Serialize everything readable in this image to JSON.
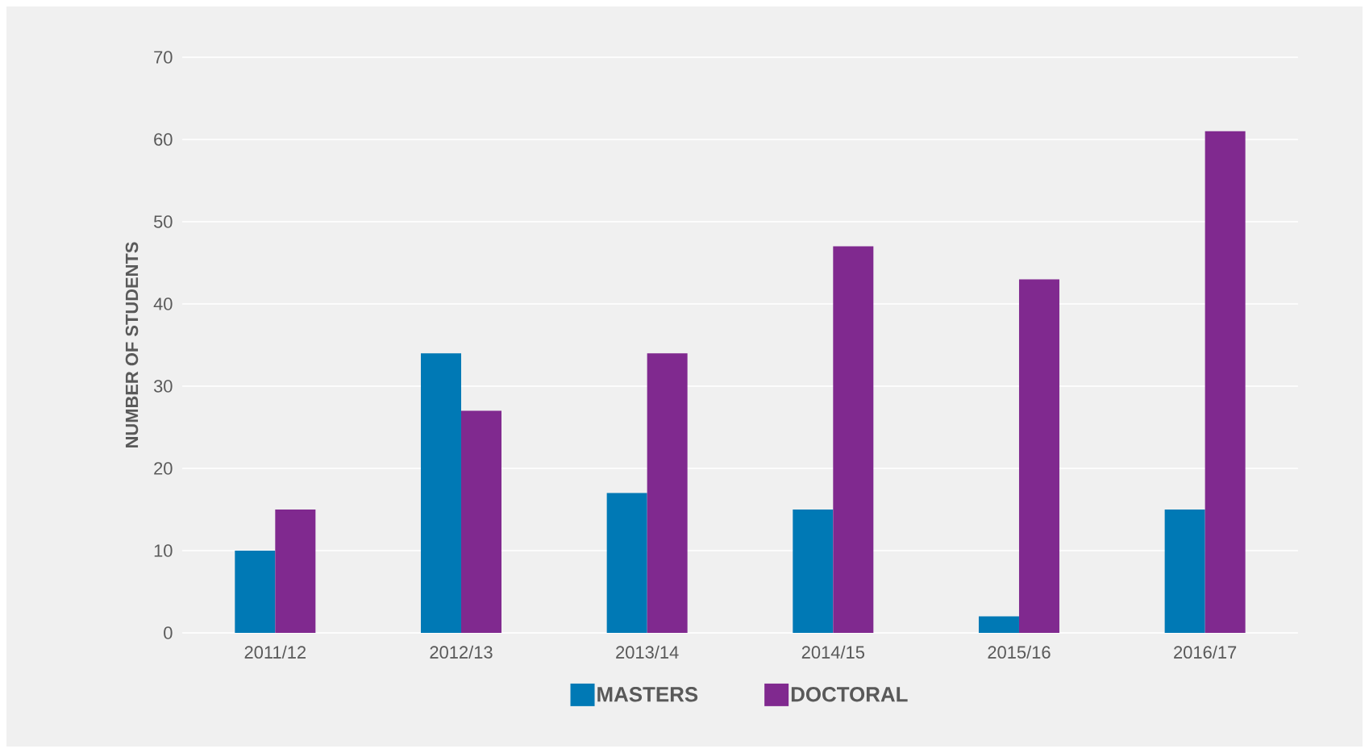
{
  "chart_data": {
    "type": "bar",
    "ylabel": "NUMBER OF STUDENTS",
    "categories": [
      "2011/12",
      "2012/13",
      "2013/14",
      "2014/15",
      "2015/16",
      "2016/17"
    ],
    "series": [
      {
        "name": "MASTERS",
        "color": "#0079b5",
        "values": [
          10,
          34,
          17,
          15,
          2,
          15
        ]
      },
      {
        "name": "DOCTORAL",
        "color": "#80298f",
        "values": [
          15,
          27,
          34,
          47,
          43,
          61
        ]
      }
    ],
    "ylim": [
      0,
      70
    ],
    "yticks": [
      0,
      10,
      20,
      30,
      40,
      50,
      60,
      70
    ],
    "grid": "y",
    "legend": "bottom"
  }
}
